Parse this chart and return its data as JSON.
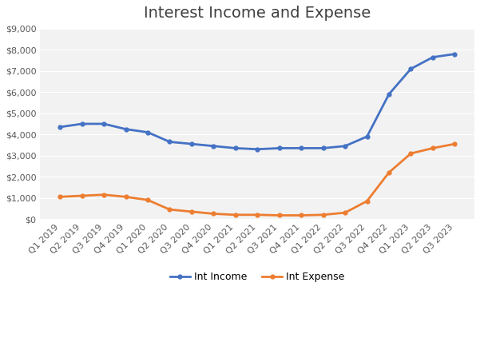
{
  "title": "Interest Income and Expense",
  "categories": [
    "Q1 2019",
    "Q2 2019",
    "Q3 2019",
    "Q4 2019",
    "Q1 2020",
    "Q2 2020",
    "Q3 2020",
    "Q4 2020",
    "Q1 2021",
    "Q2 2021",
    "Q3 2021",
    "Q4 2021",
    "Q1 2022",
    "Q2 2022",
    "Q3 2022",
    "Q4 2022",
    "Q1 2023",
    "Q2 2023",
    "Q3 2023"
  ],
  "int_income": [
    4350,
    4500,
    4500,
    4250,
    4100,
    3650,
    3550,
    3450,
    3350,
    3300,
    3350,
    3350,
    3350,
    3450,
    3900,
    5900,
    7100,
    7650,
    7800
  ],
  "int_expense": [
    1050,
    1100,
    1150,
    1050,
    900,
    450,
    350,
    250,
    200,
    200,
    175,
    175,
    200,
    300,
    850,
    2200,
    3100,
    3350,
    3550
  ],
  "income_color": "#4472C4",
  "expense_color": "#ED7D31",
  "income_label": "Int Income",
  "expense_label": "Int Expense",
  "ylim": [
    0,
    9000
  ],
  "yticks": [
    0,
    1000,
    2000,
    3000,
    4000,
    5000,
    6000,
    7000,
    8000,
    9000
  ],
  "bg_color": "#FFFFFF",
  "plot_bg_color": "#F2F2F2",
  "grid_color": "#FFFFFF",
  "title_fontsize": 14,
  "title_color": "#404040",
  "tick_fontsize": 8,
  "tick_color": "#595959",
  "legend_fontsize": 9,
  "line_width": 2.0,
  "marker_size": 3.5
}
